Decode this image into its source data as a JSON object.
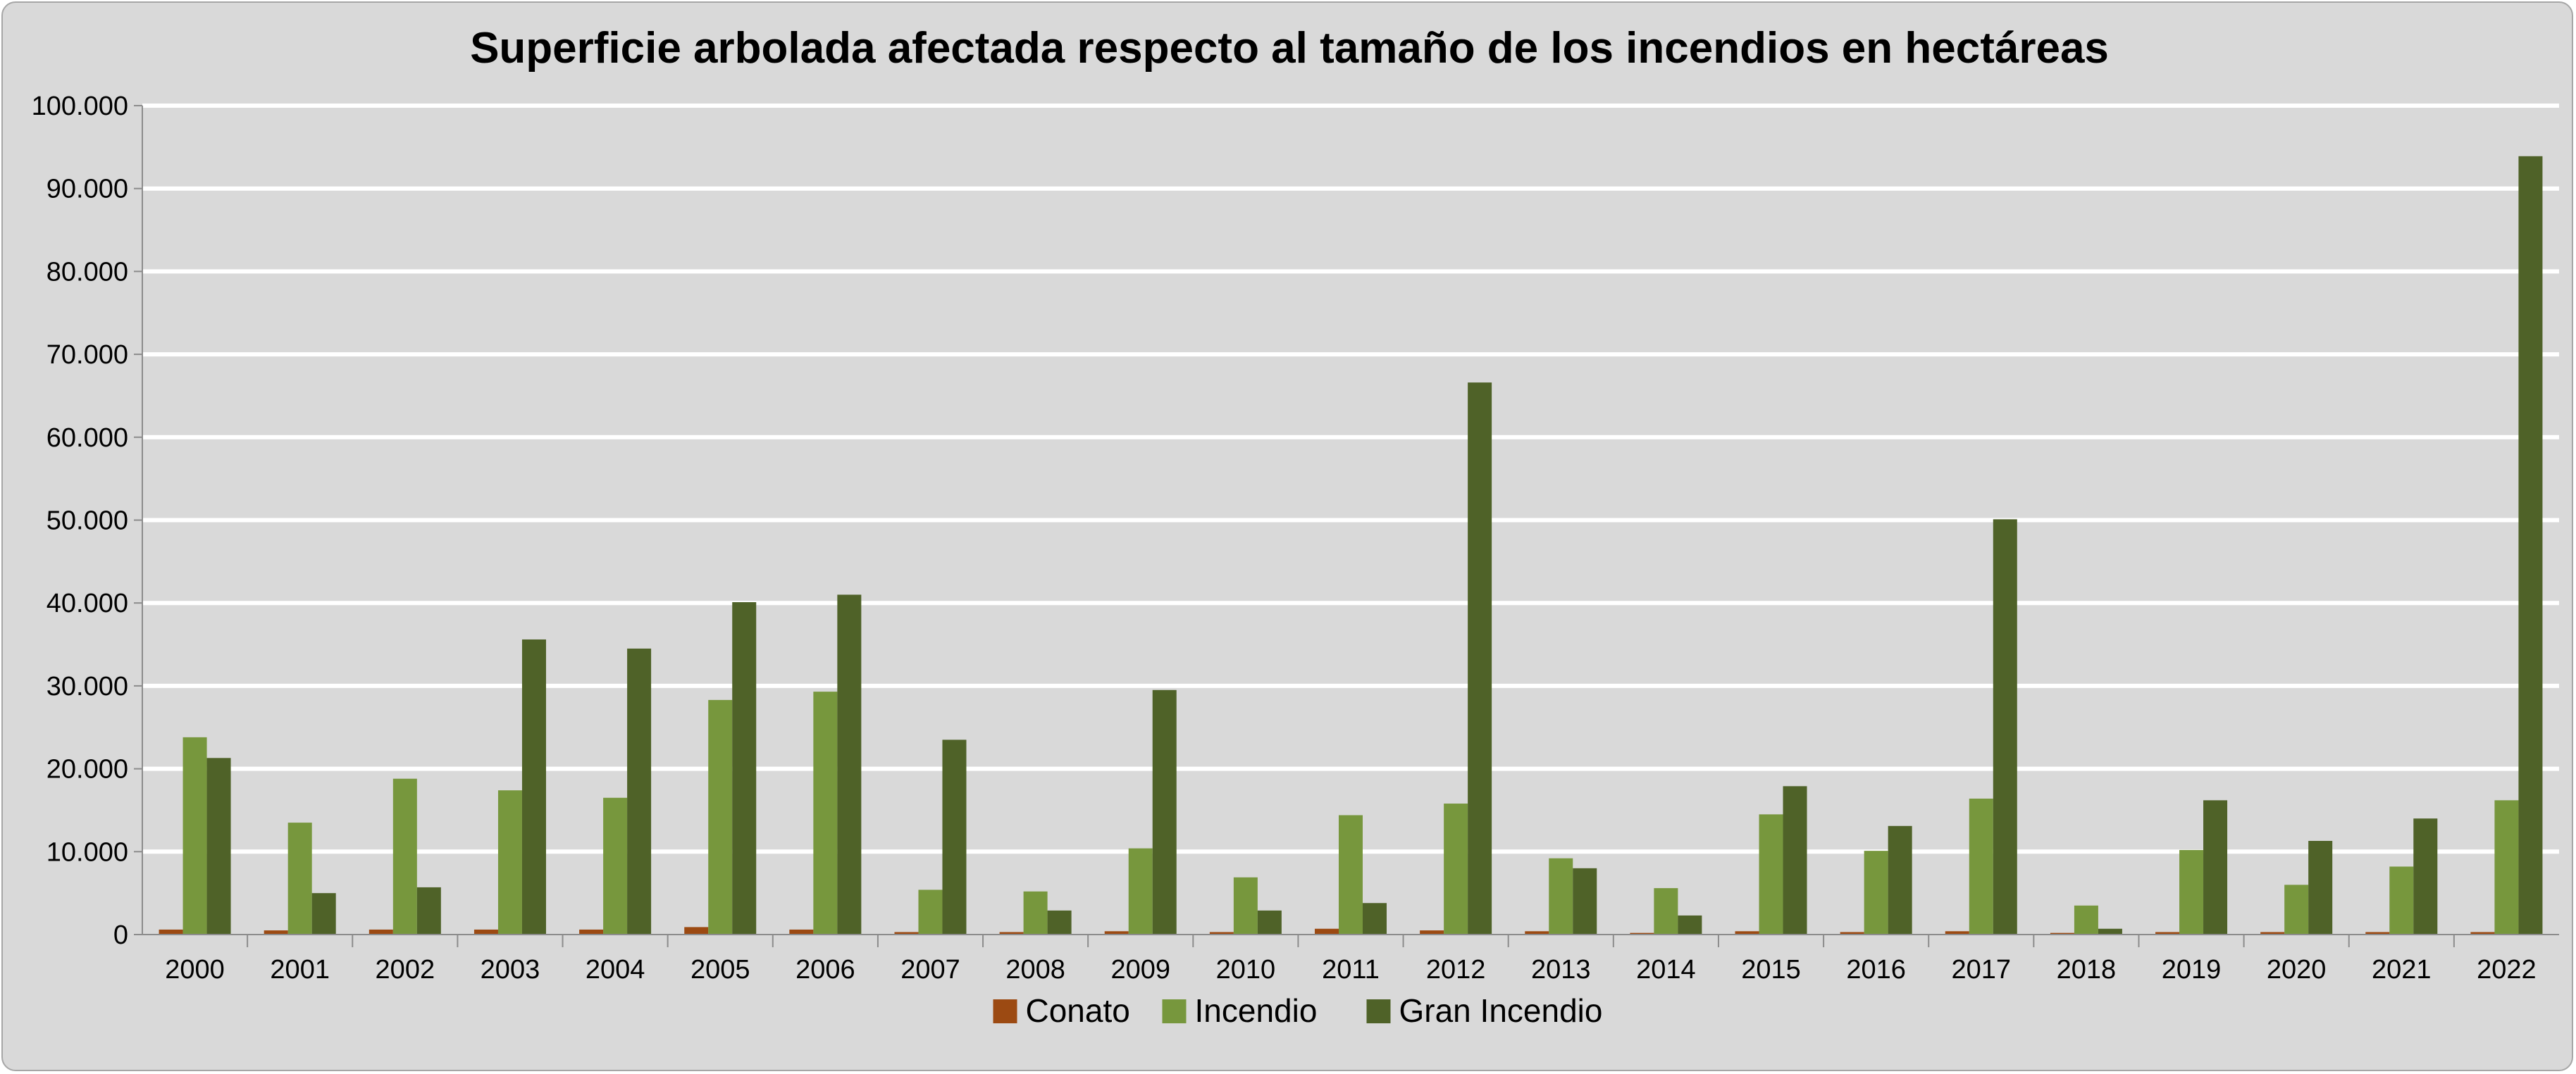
{
  "chart_data": {
    "type": "bar",
    "title": "Superficie arbolada afectada respecto al tamaño de los incendios en hectáreas",
    "xlabel": "",
    "ylabel": "",
    "ylim": [
      0,
      100000
    ],
    "y_ticks": [
      0,
      10000,
      20000,
      30000,
      40000,
      50000,
      60000,
      70000,
      80000,
      90000,
      100000
    ],
    "y_tick_labels": [
      "0",
      "10.000",
      "20.000",
      "30.000",
      "40.000",
      "50.000",
      "60.000",
      "70.000",
      "80.000",
      "90.000",
      "100.000"
    ],
    "grid": true,
    "legend_position": "bottom",
    "categories": [
      "2000",
      "2001",
      "2002",
      "2003",
      "2004",
      "2005",
      "2006",
      "2007",
      "2008",
      "2009",
      "2010",
      "2011",
      "2012",
      "2013",
      "2014",
      "2015",
      "2016",
      "2017",
      "2018",
      "2019",
      "2020",
      "2021",
      "2022"
    ],
    "series": [
      {
        "name": "Conato",
        "color": "#9c4a12",
        "values": [
          600,
          500,
          600,
          600,
          600,
          900,
          600,
          300,
          300,
          400,
          300,
          700,
          500,
          400,
          200,
          400,
          300,
          400,
          200,
          300,
          300,
          300,
          300
        ]
      },
      {
        "name": "Incendio",
        "color": "#77973d",
        "values": [
          23800,
          13500,
          18800,
          17400,
          16500,
          28300,
          29300,
          5400,
          5200,
          10400,
          6900,
          14400,
          15800,
          9200,
          5600,
          14500,
          10100,
          16400,
          3500,
          10200,
          6000,
          8200,
          16200
        ]
      },
      {
        "name": "Gran Incendio",
        "color": "#4f6228",
        "values": [
          21300,
          5000,
          5700,
          35600,
          34500,
          40100,
          41000,
          23500,
          2900,
          29500,
          2900,
          3800,
          66600,
          8000,
          2300,
          17900,
          13100,
          50100,
          700,
          16200,
          11300,
          14000,
          93900
        ]
      }
    ]
  }
}
